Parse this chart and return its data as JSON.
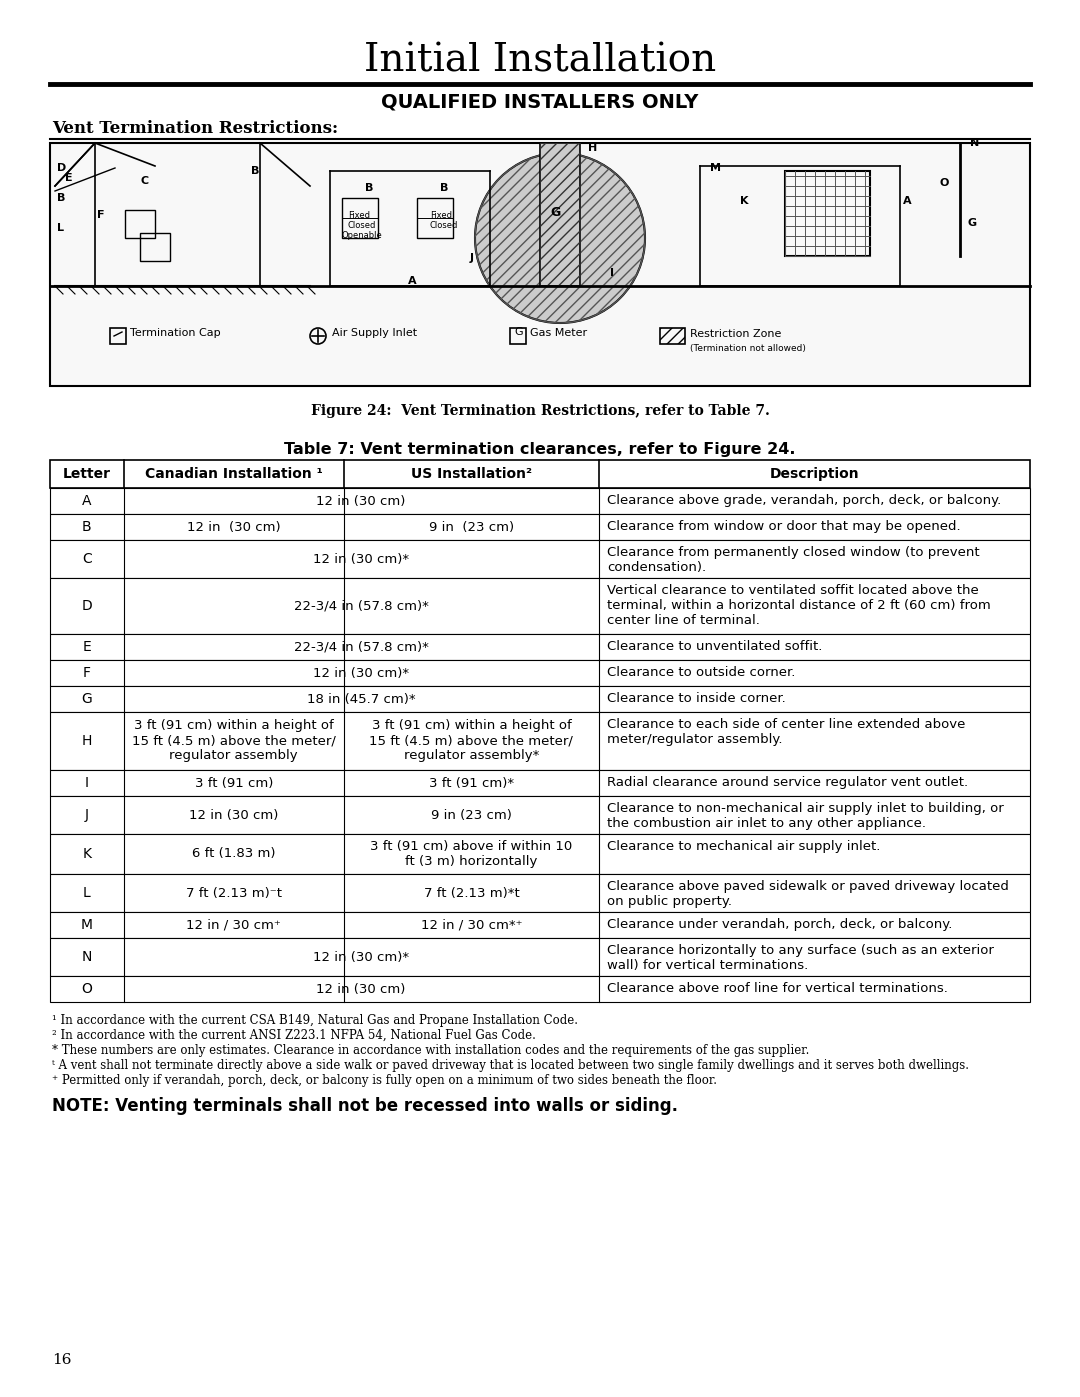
{
  "title": "Initial Installation",
  "subtitle": "QUALIFIED INSTALLERS ONLY",
  "section_heading": "Vent Termination Restrictions:",
  "figure_caption": "Figure 24:  Vent Termination Restrictions, refer to Table 7.",
  "table_title": "Table 7: Vent termination clearances, refer to Figure 24.",
  "table_headers": [
    "Letter",
    "Canadian Installation ¹",
    "US Installation²",
    "Description"
  ],
  "table_rows": [
    [
      "A",
      "12 in (30 cm)",
      "",
      "Clearance above grade, verandah, porch, deck, or balcony."
    ],
    [
      "B",
      "12 in  (30 cm)",
      "9 in  (23 cm)",
      "Clearance from window or door that may be opened."
    ],
    [
      "C",
      "12 in (30 cm)*",
      "",
      "Clearance from permanently closed window (to prevent\ncondensation)."
    ],
    [
      "D",
      "22-3/4 in (57.8 cm)*",
      "",
      "Vertical clearance to ventilated soffit located above the\nterminal, within a horizontal distance of 2 ft (60 cm) from\ncenter line of terminal."
    ],
    [
      "E",
      "22-3/4 in (57.8 cm)*",
      "",
      "Clearance to unventilated soffit."
    ],
    [
      "F",
      "12 in (30 cm)*",
      "",
      "Clearance to outside corner."
    ],
    [
      "G",
      "18 in (45.7 cm)*",
      "",
      "Clearance to inside corner."
    ],
    [
      "H",
      "3 ft (91 cm) within a height of\n15 ft (4.5 m) above the meter/\nregulator assembly",
      "3 ft (91 cm) within a height of\n15 ft (4.5 m) above the meter/\nregulator assembly*",
      "Clearance to each side of center line extended above\nmeter/regulator assembly."
    ],
    [
      "I",
      "3 ft (91 cm)",
      "3 ft (91 cm)*",
      "Radial clearance around service regulator vent outlet."
    ],
    [
      "J",
      "12 in (30 cm)",
      "9 in (23 cm)",
      "Clearance to non-mechanical air supply inlet to building, or\nthe combustion air inlet to any other appliance."
    ],
    [
      "K",
      "6 ft (1.83 m)",
      "3 ft (91 cm) above if within 10\nft (3 m) horizontally",
      "Clearance to mechanical air supply inlet."
    ],
    [
      "L",
      "7 ft (2.13 m)⁻t",
      "7 ft (2.13 m)*t",
      "Clearance above paved sidewalk or paved driveway located\non public property."
    ],
    [
      "M",
      "12 in / 30 cm⁺",
      "12 in / 30 cm*⁺",
      "Clearance under verandah, porch, deck, or balcony."
    ],
    [
      "N",
      "12 in (30 cm)*",
      "",
      "Clearance horizontally to any surface (such as an exterior\nwall) for vertical terminations."
    ],
    [
      "O",
      "12 in (30 cm)",
      "",
      "Clearance above roof line for vertical terminations."
    ]
  ],
  "footnotes": [
    "¹ In accordance with the current CSA B149, Natural Gas and Propane Installation Code.",
    "² In accordance with the current ANSI Z223.1 NFPA 54, National Fuel Gas Code.",
    "* These numbers are only estimates. Clearance in accordance with installation codes and the requirements of the gas supplier.",
    "ᵗ A vent shall not terminate directly above a side walk or paved driveway that is located between two single family dwellings and it serves both dwellings.",
    "⁺ Permitted only if verandah, porch, deck, or balcony is fully open on a minimum of two sides beneath the floor."
  ],
  "note": "NOTE: Venting terminals shall not be recessed into walls or siding.",
  "page_number": "16",
  "bg_color": "#ffffff",
  "text_color": "#000000",
  "line_color": "#000000",
  "header_fill": "#ffffff",
  "table_line_color": "#000000"
}
